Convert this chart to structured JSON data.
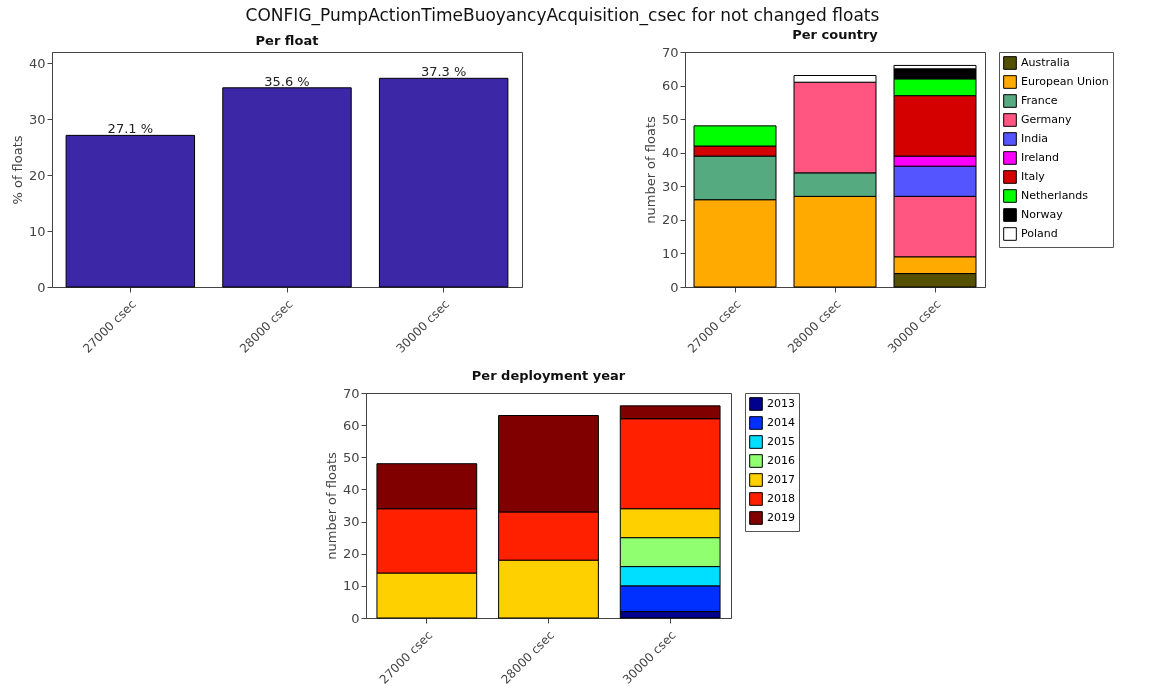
{
  "chart_data": [
    {
      "type": "bar",
      "title": "CONFIG_PumpActionTimeBuoyancyAcquisition_csec for not changed floats",
      "subtitle": "Per float",
      "ylabel": "% of floats",
      "categories": [
        "27000 csec",
        "28000 csec",
        "30000 csec"
      ],
      "values": [
        27.1,
        35.6,
        37.3
      ],
      "value_labels": [
        "27.1 %",
        "35.6 %",
        "37.3 %"
      ],
      "color": "#3c28a6",
      "ylim": [
        0,
        42
      ],
      "yticks": [
        0,
        10,
        20,
        30,
        40
      ]
    },
    {
      "type": "bar",
      "title": "Per country",
      "ylabel": "number of floats",
      "categories": [
        "27000 csec",
        "28000 csec",
        "30000 csec"
      ],
      "stacked": true,
      "legend": "right",
      "ylim": [
        0,
        70
      ],
      "yticks": [
        0,
        10,
        20,
        30,
        40,
        50,
        60,
        70
      ],
      "series": [
        {
          "name": "Australia",
          "color": "#555000",
          "values": [
            null,
            null,
            4
          ]
        },
        {
          "name": "European Union",
          "color": "#ffaa00",
          "values": [
            26,
            27,
            5
          ]
        },
        {
          "name": "France",
          "color": "#55aa80",
          "values": [
            13,
            7,
            null
          ]
        },
        {
          "name": "Germany",
          "color": "#ff5580",
          "values": [
            null,
            27,
            18
          ]
        },
        {
          "name": "India",
          "color": "#5555ff",
          "values": [
            null,
            null,
            9
          ]
        },
        {
          "name": "Ireland",
          "color": "#ff00ff",
          "values": [
            null,
            null,
            3
          ]
        },
        {
          "name": "Italy",
          "color": "#d40000",
          "values": [
            3,
            null,
            18
          ]
        },
        {
          "name": "Netherlands",
          "color": "#00ff00",
          "values": [
            6,
            null,
            5
          ]
        },
        {
          "name": "Norway",
          "color": "#000000",
          "values": [
            null,
            null,
            3
          ]
        },
        {
          "name": "Poland",
          "color": "#ffffff",
          "values": [
            null,
            2,
            1
          ]
        }
      ]
    },
    {
      "type": "bar",
      "title": "Per deployment year",
      "ylabel": "number of floats",
      "categories": [
        "27000 csec",
        "28000 csec",
        "30000 csec"
      ],
      "stacked": true,
      "legend": "right",
      "ylim": [
        0,
        70
      ],
      "yticks": [
        0,
        10,
        20,
        30,
        40,
        50,
        60,
        70
      ],
      "series": [
        {
          "name": "2013",
          "color": "#00008f",
          "values": [
            null,
            null,
            2
          ]
        },
        {
          "name": "2014",
          "color": "#0030ff",
          "values": [
            null,
            null,
            8
          ]
        },
        {
          "name": "2015",
          "color": "#00dfff",
          "values": [
            null,
            null,
            6
          ]
        },
        {
          "name": "2016",
          "color": "#90ff70",
          "values": [
            null,
            null,
            9
          ]
        },
        {
          "name": "2017",
          "color": "#ffd000",
          "values": [
            14,
            18,
            9
          ]
        },
        {
          "name": "2018",
          "color": "#ff2000",
          "values": [
            20,
            15,
            28
          ]
        },
        {
          "name": "2019",
          "color": "#800000",
          "values": [
            14,
            30,
            4
          ]
        }
      ]
    }
  ]
}
